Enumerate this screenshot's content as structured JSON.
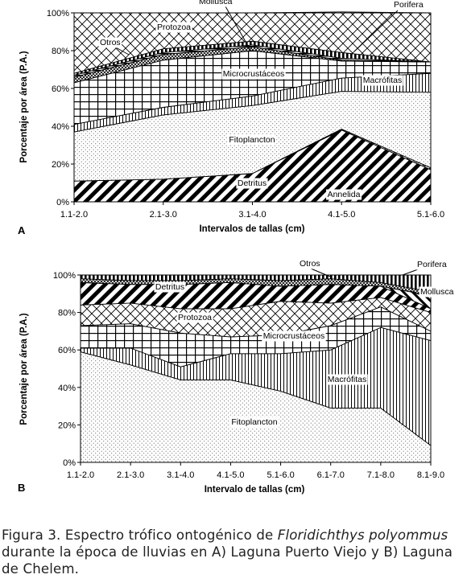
{
  "chart_data": [
    {
      "type": "area",
      "stacked": true,
      "panel_label": "A",
      "xlabel": "Intervalos de tallas (cm)",
      "ylabel": "Porcentaje por área (P.A.)",
      "ylim": [
        0,
        100
      ],
      "yticks": [
        "0%",
        "20%",
        "40%",
        "60%",
        "80%",
        "100%"
      ],
      "categories": [
        "1.1-2.0",
        "2.1-3.0",
        "3.1-4.0",
        "4.1-5.0",
        "5.1-6.0"
      ],
      "series": [
        {
          "name": "Detritus",
          "pattern": "diag-down",
          "values": [
            11,
            12,
            15,
            38,
            17
          ]
        },
        {
          "name": "Annelida",
          "pattern": "zigzag",
          "values": [
            0,
            0,
            0,
            0.5,
            1
          ]
        },
        {
          "name": "Fitoplancton",
          "pattern": "dots",
          "values": [
            26,
            34,
            36,
            20,
            40
          ]
        },
        {
          "name": "Macrófitas",
          "pattern": "vlines",
          "values": [
            4,
            4,
            5,
            7,
            10
          ]
        },
        {
          "name": "Microcrustáceos",
          "pattern": "grid",
          "values": [
            22,
            25,
            24,
            9,
            6
          ]
        },
        {
          "name": "Otros",
          "pattern": "crosshatch-fine",
          "values": [
            3,
            3,
            2,
            0.5,
            0
          ]
        },
        {
          "name": "Mollusca",
          "pattern": "hlines",
          "values": [
            1,
            1,
            1,
            1,
            0
          ]
        },
        {
          "name": "Porifera",
          "pattern": "vbars",
          "values": [
            1,
            2,
            2,
            3,
            0
          ]
        },
        {
          "name": "Protozoa",
          "pattern": "crosshatch",
          "values": [
            32,
            19,
            15,
            21.5,
            26
          ]
        }
      ]
    },
    {
      "type": "area",
      "stacked": true,
      "panel_label": "B",
      "xlabel": "Intervalo de tallas (cm)",
      "ylabel": "Porcentaje por área (P.A.)",
      "ylim": [
        0,
        100
      ],
      "yticks": [
        "0%",
        "20%",
        "40%",
        "60%",
        "80%",
        "100%"
      ],
      "categories": [
        "1.1-2.0",
        "2.1-3.0",
        "3.1-4.0",
        "4.1-5.0",
        "5.1-6.0",
        "6.1-7.0",
        "7.1-8.0",
        "8.1-9.0"
      ],
      "series": [
        {
          "name": "Fitoplancton",
          "pattern": "dots",
          "values": [
            59,
            52,
            44,
            44,
            38,
            29,
            29,
            9
          ]
        },
        {
          "name": "Macrófitas",
          "pattern": "vlines",
          "values": [
            2,
            9,
            7,
            14,
            20,
            31,
            43,
            56
          ]
        },
        {
          "name": "Microcrustáceos",
          "pattern": "grid",
          "values": [
            12,
            13,
            18,
            9,
            10,
            13,
            11,
            5
          ]
        },
        {
          "name": "Protozoa",
          "pattern": "crosshatch",
          "values": [
            11,
            11,
            13,
            15,
            18,
            12,
            5,
            10
          ]
        },
        {
          "name": "Detritus",
          "pattern": "diag-down",
          "values": [
            12,
            10,
            13,
            14,
            8,
            10,
            6,
            2
          ]
        },
        {
          "name": "Mollusca",
          "pattern": "diag-up",
          "values": [
            0,
            0,
            0,
            0,
            0,
            0,
            0,
            7
          ]
        },
        {
          "name": "Otros",
          "pattern": "crosshatch-fine",
          "values": [
            2,
            2,
            2,
            2,
            3,
            3,
            2,
            2
          ]
        },
        {
          "name": "Porifera",
          "pattern": "vbars",
          "values": [
            2,
            3,
            3,
            2,
            3,
            2,
            4,
            9
          ]
        }
      ]
    }
  ],
  "caption": {
    "prefix": "Figura 3. Espectro trófico ontogénico de ",
    "species": "Floridichthys polyommus",
    "suffix": " durante la época de lluvias en A) Laguna Puerto Viejo y B) Laguna de Chelem."
  }
}
